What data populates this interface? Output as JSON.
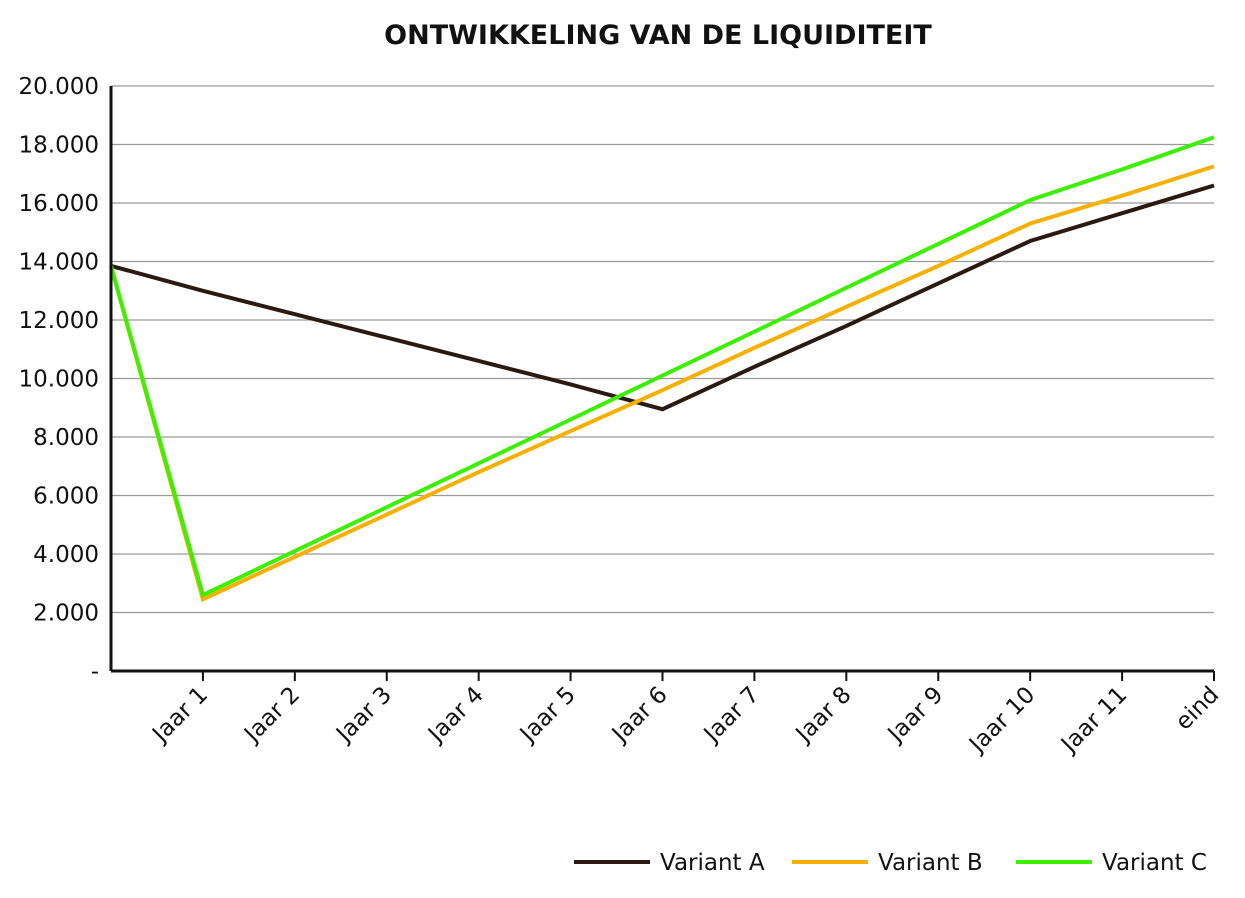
{
  "chart_data": {
    "type": "line",
    "title": "ONTWIKKELING VAN DE LIQUIDITEIT",
    "xlabel": "",
    "ylabel": "",
    "categories": [
      "",
      "Jaar 1",
      "Jaar 2",
      "Jaar 3",
      "Jaar 4",
      "Jaar 5",
      "Jaar 6",
      "Jaar 7",
      "Jaar 8",
      "Jaar 9",
      "Jaar 10",
      "Jaar 11",
      "eind"
    ],
    "ylim": [
      0,
      20000
    ],
    "yticks": [
      0,
      2000,
      4000,
      6000,
      8000,
      10000,
      12000,
      14000,
      16000,
      18000,
      20000
    ],
    "ytick_labels": [
      "-",
      "2.000",
      "4.000",
      "6.000",
      "8.000",
      "10.000",
      "12.000",
      "14.000",
      "16.000",
      "18.000",
      "20.000"
    ],
    "grid": true,
    "legend_position": "bottom-right",
    "series": [
      {
        "name": "Variant A",
        "color": "#2a1a12",
        "values": [
          13850,
          13000,
          12200,
          11400,
          10600,
          9800,
          8950,
          10400,
          11800,
          13250,
          14700,
          15650,
          16600
        ]
      },
      {
        "name": "Variant B",
        "color": "#f7b000",
        "values": [
          13850,
          2450,
          3900,
          5350,
          6800,
          8200,
          9600,
          11050,
          12450,
          13850,
          15300,
          16250,
          17250
        ]
      },
      {
        "name": "Variant C",
        "color": "#3cf000",
        "values": [
          13850,
          2600,
          4100,
          5600,
          7100,
          8600,
          10100,
          11600,
          13100,
          14600,
          16100,
          17150,
          18250
        ]
      }
    ]
  }
}
